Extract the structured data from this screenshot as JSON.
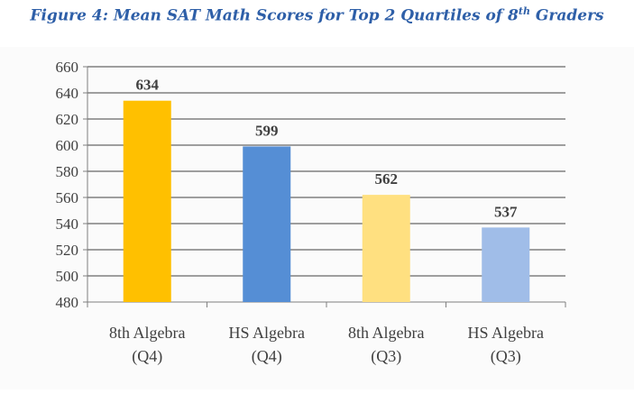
{
  "chart_data": {
    "type": "bar",
    "title_main": "Figure 4:  Mean SAT Math Scores for Top 2 Quartiles of 8",
    "title_sup": "th",
    "title_end": " Graders",
    "categories": [
      {
        "line1": "8th Algebra",
        "line2": "(Q4)"
      },
      {
        "line1": "HS Algebra",
        "line2": "(Q4)"
      },
      {
        "line1": "8th Algebra",
        "line2": "(Q3)"
      },
      {
        "line1": "HS Algebra",
        "line2": "(Q3)"
      }
    ],
    "values": [
      634,
      599,
      562,
      537
    ],
    "colors": [
      "#ffc000",
      "#558ed5",
      "#ffe080",
      "#a0bde8"
    ],
    "ylim": [
      480,
      660
    ],
    "yticks": [
      480,
      500,
      520,
      540,
      560,
      580,
      600,
      620,
      640,
      660
    ],
    "xlabel": "",
    "ylabel": "",
    "grid": true,
    "legend": "none"
  }
}
